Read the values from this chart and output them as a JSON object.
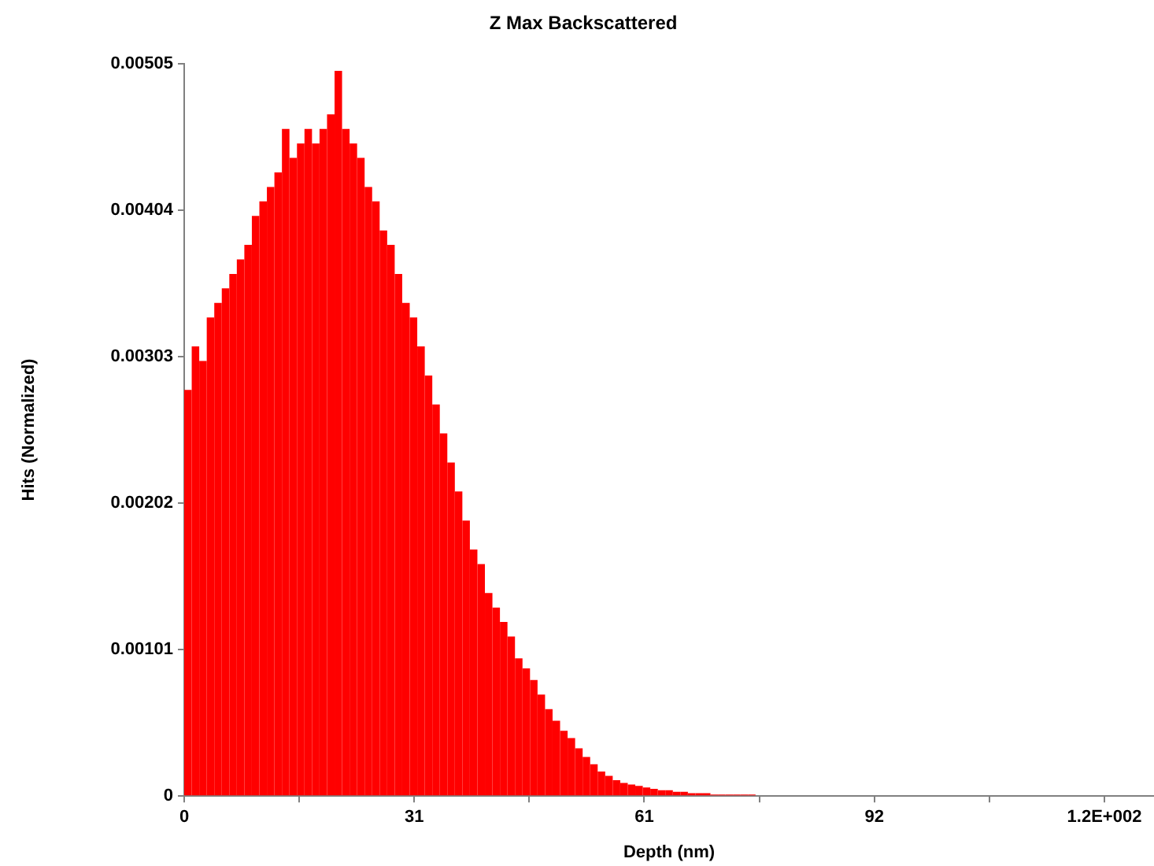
{
  "chart_data": {
    "type": "histogram",
    "title": "Z Max Backscattered",
    "xlabel": "Depth (nm)",
    "ylabel": "Hits (Normalized)",
    "color": "#ff0000",
    "bins": [
      0,
      1,
      2,
      3,
      4,
      5,
      6,
      7,
      8,
      9,
      10,
      11,
      12,
      13,
      14,
      15,
      16,
      17,
      18,
      19,
      20,
      21,
      22,
      23,
      24,
      25,
      26,
      27,
      28,
      29,
      30,
      31,
      32,
      33,
      34,
      35,
      36,
      37,
      38,
      39,
      40,
      41,
      42,
      43,
      44,
      45,
      46,
      47,
      48,
      49,
      50,
      51,
      52,
      53,
      54,
      55,
      56,
      57,
      58,
      59,
      60,
      61,
      62,
      63,
      64,
      65,
      66,
      67,
      68,
      69,
      70,
      71,
      72,
      73,
      74,
      75,
      76
    ],
    "values": [
      0.0028,
      0.0031,
      0.003,
      0.0033,
      0.0034,
      0.0035,
      0.0036,
      0.0037,
      0.0038,
      0.004,
      0.0041,
      0.0042,
      0.0043,
      0.0046,
      0.0044,
      0.0045,
      0.0046,
      0.0045,
      0.0046,
      0.0047,
      0.005,
      0.0046,
      0.0045,
      0.0044,
      0.0042,
      0.0041,
      0.0039,
      0.0038,
      0.0036,
      0.0034,
      0.0033,
      0.0031,
      0.0029,
      0.0027,
      0.0025,
      0.0023,
      0.0021,
      0.0019,
      0.0017,
      0.0016,
      0.0014,
      0.0013,
      0.0012,
      0.0011,
      0.00095,
      0.00088,
      0.0008,
      0.0007,
      0.0006,
      0.00052,
      0.00045,
      0.0004,
      0.00033,
      0.00027,
      0.00022,
      0.00017,
      0.00014,
      0.00011,
      9e-05,
      8e-05,
      7e-05,
      6e-05,
      5e-05,
      4e-05,
      4e-05,
      3e-05,
      3e-05,
      2e-05,
      2e-05,
      2e-05,
      1e-05,
      1e-05,
      1e-05,
      1e-05,
      1e-05,
      1e-05
    ],
    "xlim": [
      0,
      129
    ],
    "xticks": [
      0,
      {
        "value": 15.3,
        "label": null
      },
      {
        "value": 30.6,
        "label": "31"
      },
      {
        "value": 45.9,
        "label": null
      },
      {
        "value": 61.2,
        "label": "61"
      },
      {
        "value": 76.5,
        "label": null
      },
      {
        "value": 91.8,
        "label": "92"
      },
      {
        "value": 107.1,
        "label": null
      },
      {
        "value": 122.4,
        "label": "1.2E+002"
      }
    ],
    "ylim": [
      0,
      0.00505
    ],
    "yticks": [
      0,
      0.00101,
      0.00202,
      0.00303,
      0.00404,
      0.00505
    ]
  }
}
